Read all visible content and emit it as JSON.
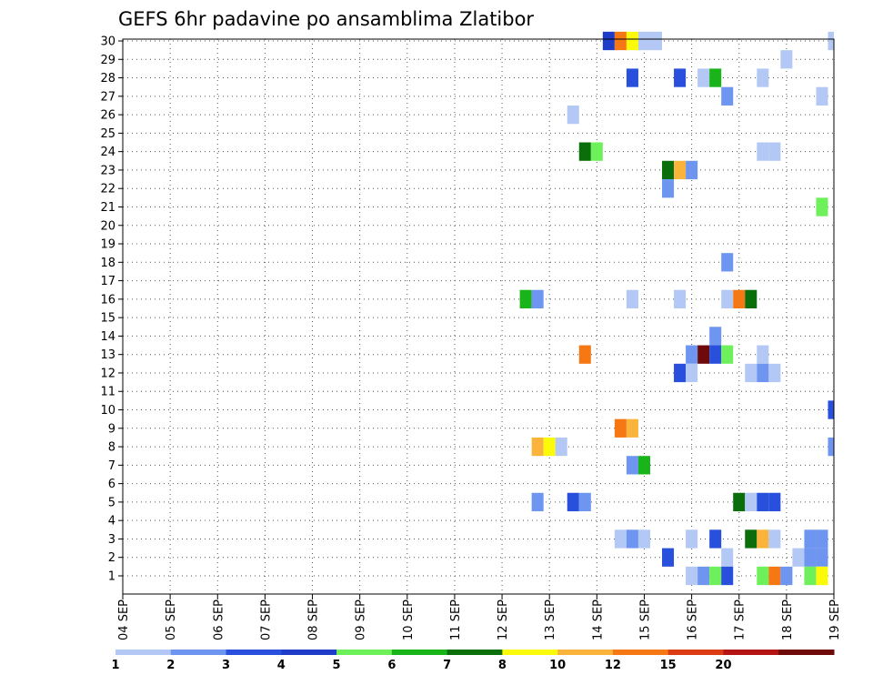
{
  "chart_data": {
    "type": "heatmap",
    "title": "GEFS 6hr padavine po ansamblima Zlatibor",
    "x_tick_labels": [
      "04 SEP",
      "05 SEP",
      "06 SEP",
      "07 SEP",
      "08 SEP",
      "09 SEP",
      "10 SEP",
      "11 SEP",
      "12 SEP",
      "13 SEP",
      "14 SEP",
      "15 SEP",
      "16 SEP",
      "17 SEP",
      "18 SEP",
      "19 SEP"
    ],
    "x_range_days": [
      4,
      19
    ],
    "y_tick_labels": [
      "1",
      "2",
      "3",
      "4",
      "5",
      "6",
      "7",
      "8",
      "9",
      "10",
      "11",
      "12",
      "13",
      "14",
      "15",
      "16",
      "17",
      "18",
      "19",
      "20",
      "21",
      "22",
      "23",
      "24",
      "25",
      "26",
      "27",
      "28",
      "29",
      "30"
    ],
    "y_range": [
      1,
      30
    ],
    "grid": true,
    "colorbar": {
      "placement": "bottom",
      "tick_labels": [
        "1",
        "2",
        "3",
        "4",
        "5",
        "6",
        "7",
        "8",
        "10",
        "12",
        "15",
        "20"
      ],
      "colors": [
        "#b4c8f5",
        "#6e96f0",
        "#2850dc",
        "#1e3cc8",
        "#6ef05a",
        "#19b419",
        "#0a6e0a",
        "#fafa0a",
        "#fab43c",
        "#f57814",
        "#dc3c14",
        "#b41414",
        "#6e0a0a"
      ]
    },
    "cells": [
      {
        "date": "14 SEP",
        "hour": 6,
        "member": 30,
        "cls": 3
      },
      {
        "date": "14 SEP",
        "hour": 12,
        "member": 30,
        "cls": 9
      },
      {
        "date": "14 SEP",
        "hour": 18,
        "member": 30,
        "cls": 7
      },
      {
        "date": "15 SEP",
        "hour": 0,
        "member": 30,
        "cls": 0
      },
      {
        "date": "15 SEP",
        "hour": 6,
        "member": 30,
        "cls": 0
      },
      {
        "date": "19 SEP",
        "hour": 0,
        "member": 30,
        "cls": 0
      },
      {
        "date": "19 SEP",
        "hour": 6,
        "member": 30,
        "cls": 5
      },
      {
        "date": "18 SEP",
        "hour": 0,
        "member": 29,
        "cls": 0
      },
      {
        "date": "14 SEP",
        "hour": 18,
        "member": 28,
        "cls": 2
      },
      {
        "date": "15 SEP",
        "hour": 18,
        "member": 28,
        "cls": 2
      },
      {
        "date": "16 SEP",
        "hour": 6,
        "member": 28,
        "cls": 0
      },
      {
        "date": "16 SEP",
        "hour": 12,
        "member": 28,
        "cls": 5
      },
      {
        "date": "17 SEP",
        "hour": 12,
        "member": 28,
        "cls": 0
      },
      {
        "date": "16 SEP",
        "hour": 18,
        "member": 27,
        "cls": 1
      },
      {
        "date": "18 SEP",
        "hour": 18,
        "member": 27,
        "cls": 0
      },
      {
        "date": "13 SEP",
        "hour": 12,
        "member": 26,
        "cls": 0
      },
      {
        "date": "13 SEP",
        "hour": 18,
        "member": 24,
        "cls": 6
      },
      {
        "date": "14 SEP",
        "hour": 0,
        "member": 24,
        "cls": 4
      },
      {
        "date": "17 SEP",
        "hour": 12,
        "member": 24,
        "cls": 0
      },
      {
        "date": "17 SEP",
        "hour": 18,
        "member": 24,
        "cls": 0
      },
      {
        "date": "15 SEP",
        "hour": 12,
        "member": 23,
        "cls": 6
      },
      {
        "date": "15 SEP",
        "hour": 18,
        "member": 23,
        "cls": 8
      },
      {
        "date": "16 SEP",
        "hour": 0,
        "member": 23,
        "cls": 1
      },
      {
        "date": "15 SEP",
        "hour": 12,
        "member": 22,
        "cls": 1
      },
      {
        "date": "18 SEP",
        "hour": 18,
        "member": 21,
        "cls": 4
      },
      {
        "date": "16 SEP",
        "hour": 18,
        "member": 18,
        "cls": 1
      },
      {
        "date": "12 SEP",
        "hour": 12,
        "member": 16,
        "cls": 5
      },
      {
        "date": "12 SEP",
        "hour": 18,
        "member": 16,
        "cls": 1
      },
      {
        "date": "14 SEP",
        "hour": 18,
        "member": 16,
        "cls": 0
      },
      {
        "date": "15 SEP",
        "hour": 18,
        "member": 16,
        "cls": 0
      },
      {
        "date": "16 SEP",
        "hour": 18,
        "member": 16,
        "cls": 0
      },
      {
        "date": "17 SEP",
        "hour": 0,
        "member": 16,
        "cls": 9
      },
      {
        "date": "17 SEP",
        "hour": 6,
        "member": 16,
        "cls": 6
      },
      {
        "date": "16 SEP",
        "hour": 12,
        "member": 14,
        "cls": 1
      },
      {
        "date": "13 SEP",
        "hour": 18,
        "member": 13,
        "cls": 9
      },
      {
        "date": "16 SEP",
        "hour": 0,
        "member": 13,
        "cls": 1
      },
      {
        "date": "16 SEP",
        "hour": 6,
        "member": 13,
        "cls": 12
      },
      {
        "date": "16 SEP",
        "hour": 12,
        "member": 13,
        "cls": 2
      },
      {
        "date": "16 SEP",
        "hour": 18,
        "member": 13,
        "cls": 4
      },
      {
        "date": "17 SEP",
        "hour": 12,
        "member": 13,
        "cls": 0
      },
      {
        "date": "15 SEP",
        "hour": 18,
        "member": 12,
        "cls": 2
      },
      {
        "date": "16 SEP",
        "hour": 0,
        "member": 12,
        "cls": 0
      },
      {
        "date": "17 SEP",
        "hour": 6,
        "member": 12,
        "cls": 0
      },
      {
        "date": "17 SEP",
        "hour": 12,
        "member": 12,
        "cls": 1
      },
      {
        "date": "17 SEP",
        "hour": 18,
        "member": 12,
        "cls": 0
      },
      {
        "date": "19 SEP",
        "hour": 6,
        "member": 11,
        "cls": 1
      },
      {
        "date": "19 SEP",
        "hour": 0,
        "member": 10,
        "cls": 2
      },
      {
        "date": "19 SEP",
        "hour": 6,
        "member": 10,
        "cls": 1
      },
      {
        "date": "14 SEP",
        "hour": 12,
        "member": 9,
        "cls": 9
      },
      {
        "date": "14 SEP",
        "hour": 18,
        "member": 9,
        "cls": 8
      },
      {
        "date": "19 SEP",
        "hour": 6,
        "member": 9,
        "cls": 7
      },
      {
        "date": "12 SEP",
        "hour": 18,
        "member": 8,
        "cls": 8
      },
      {
        "date": "13 SEP",
        "hour": 0,
        "member": 8,
        "cls": 7
      },
      {
        "date": "13 SEP",
        "hour": 6,
        "member": 8,
        "cls": 0
      },
      {
        "date": "19 SEP",
        "hour": 0,
        "member": 8,
        "cls": 1
      },
      {
        "date": "14 SEP",
        "hour": 18,
        "member": 7,
        "cls": 1
      },
      {
        "date": "15 SEP",
        "hour": 0,
        "member": 7,
        "cls": 5
      },
      {
        "date": "19 SEP",
        "hour": 6,
        "member": 7,
        "cls": 7
      },
      {
        "date": "12 SEP",
        "hour": 18,
        "member": 5,
        "cls": 1
      },
      {
        "date": "13 SEP",
        "hour": 12,
        "member": 5,
        "cls": 2
      },
      {
        "date": "13 SEP",
        "hour": 18,
        "member": 5,
        "cls": 1
      },
      {
        "date": "17 SEP",
        "hour": 0,
        "member": 5,
        "cls": 6
      },
      {
        "date": "17 SEP",
        "hour": 6,
        "member": 5,
        "cls": 0
      },
      {
        "date": "17 SEP",
        "hour": 12,
        "member": 5,
        "cls": 2
      },
      {
        "date": "17 SEP",
        "hour": 18,
        "member": 5,
        "cls": 2
      },
      {
        "date": "14 SEP",
        "hour": 12,
        "member": 3,
        "cls": 0
      },
      {
        "date": "14 SEP",
        "hour": 18,
        "member": 3,
        "cls": 1
      },
      {
        "date": "15 SEP",
        "hour": 0,
        "member": 3,
        "cls": 0
      },
      {
        "date": "16 SEP",
        "hour": 0,
        "member": 3,
        "cls": 0
      },
      {
        "date": "16 SEP",
        "hour": 12,
        "member": 3,
        "cls": 2
      },
      {
        "date": "17 SEP",
        "hour": 6,
        "member": 3,
        "cls": 6
      },
      {
        "date": "17 SEP",
        "hour": 12,
        "member": 3,
        "cls": 8
      },
      {
        "date": "17 SEP",
        "hour": 18,
        "member": 3,
        "cls": 0
      },
      {
        "date": "18 SEP",
        "hour": 12,
        "member": 3,
        "cls": 1
      },
      {
        "date": "18 SEP",
        "hour": 18,
        "member": 3,
        "cls": 1
      },
      {
        "date": "19 SEP",
        "hour": 6,
        "member": 3,
        "cls": 5
      },
      {
        "date": "15 SEP",
        "hour": 12,
        "member": 2,
        "cls": 2
      },
      {
        "date": "16 SEP",
        "hour": 18,
        "member": 2,
        "cls": 0
      },
      {
        "date": "18 SEP",
        "hour": 6,
        "member": 2,
        "cls": 0
      },
      {
        "date": "18 SEP",
        "hour": 12,
        "member": 2,
        "cls": 1
      },
      {
        "date": "18 SEP",
        "hour": 18,
        "member": 2,
        "cls": 1
      },
      {
        "date": "16 SEP",
        "hour": 0,
        "member": 1,
        "cls": 0
      },
      {
        "date": "16 SEP",
        "hour": 6,
        "member": 1,
        "cls": 1
      },
      {
        "date": "16 SEP",
        "hour": 12,
        "member": 1,
        "cls": 4
      },
      {
        "date": "16 SEP",
        "hour": 18,
        "member": 1,
        "cls": 2
      },
      {
        "date": "17 SEP",
        "hour": 12,
        "member": 1,
        "cls": 4
      },
      {
        "date": "17 SEP",
        "hour": 18,
        "member": 1,
        "cls": 9
      },
      {
        "date": "18 SEP",
        "hour": 0,
        "member": 1,
        "cls": 1
      },
      {
        "date": "18 SEP",
        "hour": 12,
        "member": 1,
        "cls": 4
      },
      {
        "date": "18 SEP",
        "hour": 18,
        "member": 1,
        "cls": 7
      },
      {
        "date": "19 SEP",
        "hour": 6,
        "member": 1,
        "cls": 0
      }
    ]
  }
}
